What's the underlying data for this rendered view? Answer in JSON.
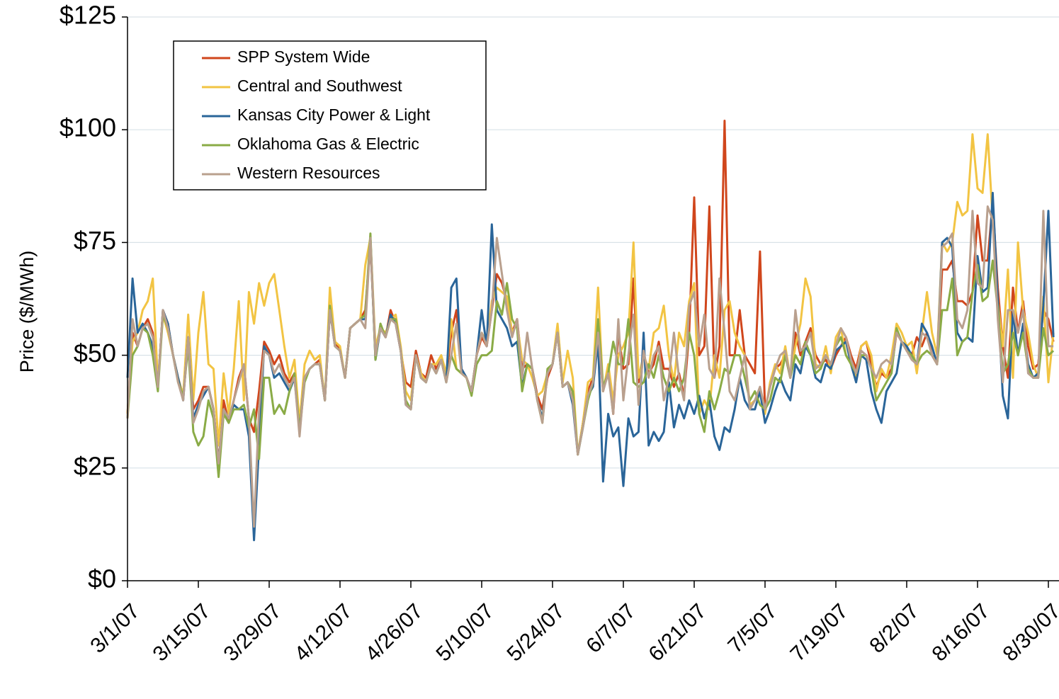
{
  "chart_data": {
    "type": "line",
    "y_label": "Price ($/MWh)",
    "categories": [
      "3/1/07",
      null,
      null,
      null,
      null,
      null,
      null,
      null,
      null,
      null,
      null,
      null,
      null,
      null,
      "3/15/07",
      null,
      null,
      null,
      null,
      null,
      null,
      null,
      null,
      null,
      null,
      null,
      null,
      null,
      "3/29/07",
      null,
      null,
      null,
      null,
      null,
      null,
      null,
      null,
      null,
      null,
      null,
      null,
      null,
      "4/12/07",
      null,
      null,
      null,
      null,
      null,
      null,
      null,
      null,
      null,
      null,
      null,
      null,
      null,
      "4/26/07",
      null,
      null,
      null,
      null,
      null,
      null,
      null,
      null,
      null,
      null,
      null,
      null,
      null,
      "5/10/07",
      null,
      null,
      null,
      null,
      null,
      null,
      null,
      null,
      null,
      null,
      null,
      null,
      null,
      "5/24/07",
      null,
      null,
      null,
      null,
      null,
      null,
      null,
      null,
      null,
      null,
      null,
      null,
      null,
      "6/7/07",
      null,
      null,
      null,
      null,
      null,
      null,
      null,
      null,
      null,
      null,
      null,
      null,
      null,
      "6/21/07",
      null,
      null,
      null,
      null,
      null,
      null,
      null,
      null,
      null,
      null,
      null,
      null,
      null,
      "7/5/07",
      null,
      null,
      null,
      null,
      null,
      null,
      null,
      null,
      null,
      null,
      null,
      null,
      null,
      "7/19/07",
      null,
      null,
      null,
      null,
      null,
      null,
      null,
      null,
      null,
      null,
      null,
      null,
      null,
      "8/2/07",
      null,
      null,
      null,
      null,
      null,
      null,
      null,
      null,
      null,
      null,
      null,
      null,
      null,
      "8/16/07",
      null,
      null,
      null,
      null,
      null,
      null,
      null,
      null,
      null,
      null,
      null,
      null,
      null,
      "8/30/07",
      null
    ],
    "ylim": [
      0,
      125
    ],
    "yticks": [
      {
        "value": 0,
        "label": "$0"
      },
      {
        "value": 25,
        "label": "$25"
      },
      {
        "value": 50,
        "label": "$50"
      },
      {
        "value": 75,
        "label": "$75"
      },
      {
        "value": 100,
        "label": "$100"
      },
      {
        "value": 125,
        "label": "$125"
      }
    ],
    "grid": true,
    "legend": "upper left",
    "series": [
      {
        "name": "SPP System Wide",
        "color": "#d0461c",
        "values": [
          37,
          55,
          52,
          56,
          58,
          55,
          43,
          60,
          57,
          50,
          45,
          41,
          54,
          38,
          40,
          43,
          43,
          38,
          26,
          40,
          35,
          40,
          45,
          48,
          36,
          33,
          42,
          53,
          51,
          48,
          50,
          46,
          44,
          46,
          33,
          45,
          47,
          48,
          49,
          40,
          60,
          53,
          51,
          45,
          56,
          57,
          58,
          60,
          75,
          50,
          56,
          54,
          60,
          57,
          51,
          44,
          43,
          51,
          46,
          45,
          50,
          47,
          49,
          45,
          55,
          60,
          47,
          45,
          42,
          50,
          54,
          52,
          60,
          68,
          66,
          62,
          55,
          58,
          47,
          48,
          47,
          41,
          38,
          45,
          48,
          55,
          43,
          44,
          42,
          28,
          35,
          42,
          45,
          55,
          42,
          47,
          37,
          55,
          47,
          48,
          67,
          44,
          50,
          46,
          48,
          53,
          47,
          47,
          43,
          46,
          41,
          55,
          85,
          50,
          52,
          83,
          45,
          52,
          102,
          50,
          50,
          60,
          50,
          48,
          46,
          73,
          38,
          43,
          47,
          48,
          50,
          45,
          55,
          50,
          53,
          56,
          50,
          48,
          49,
          47,
          50,
          52,
          54,
          50,
          47,
          52,
          53,
          48,
          43,
          46,
          45,
          47,
          55,
          53,
          51,
          50,
          54,
          52,
          55,
          50,
          48,
          69,
          69,
          71,
          62,
          62,
          61,
          64,
          81,
          71,
          71,
          84,
          65,
          52,
          45,
          65,
          55,
          62,
          52,
          47,
          48,
          60,
          58,
          53
        ]
      },
      {
        "name": "Central and Southwest",
        "color": "#f2c443",
        "values": [
          37,
          53,
          55,
          60,
          62,
          67,
          44,
          59,
          55,
          50,
          45,
          41,
          59,
          40,
          55,
          64,
          48,
          47,
          30,
          46,
          37,
          47,
          62,
          40,
          64,
          57,
          66,
          61,
          66,
          68,
          60,
          52,
          45,
          49,
          35,
          48,
          51,
          49,
          50,
          40,
          65,
          53,
          52,
          45,
          56,
          57,
          58,
          70,
          76,
          52,
          56,
          55,
          58,
          59,
          52,
          42,
          40,
          50,
          46,
          44,
          48,
          48,
          50,
          46,
          58,
          47,
          46,
          45,
          42,
          50,
          55,
          53,
          62,
          65,
          64,
          63,
          55,
          57,
          49,
          48,
          45,
          41,
          42,
          46,
          48,
          57,
          44,
          51,
          45,
          28,
          35,
          44,
          45,
          65,
          42,
          48,
          40,
          50,
          52,
          55,
          75,
          45,
          50,
          47,
          55,
          56,
          61,
          50,
          44,
          55,
          52,
          62,
          66,
          37,
          40,
          38,
          50,
          45,
          60,
          62,
          55,
          52,
          50,
          39,
          40,
          42,
          37,
          44,
          48,
          46,
          52,
          45,
          52,
          57,
          67,
          63,
          48,
          47,
          52,
          46,
          54,
          56,
          50,
          48,
          45,
          52,
          53,
          50,
          42,
          47,
          45,
          50,
          57,
          55,
          52,
          53,
          46,
          55,
          64,
          55,
          50,
          75,
          73,
          75,
          84,
          81,
          82,
          99,
          87,
          86,
          99,
          80,
          62,
          52,
          69,
          45,
          75,
          60,
          55,
          48,
          45,
          63,
          44,
          55
        ]
      },
      {
        "name": "Kansas City Power & Light",
        "color": "#2a6599",
        "values": [
          45,
          67,
          55,
          57,
          55,
          52,
          43,
          60,
          57,
          50,
          45,
          40,
          54,
          36,
          39,
          41,
          43,
          38,
          26,
          38,
          36,
          39,
          38,
          38,
          32,
          9,
          30,
          52,
          50,
          45,
          46,
          44,
          42,
          45,
          33,
          45,
          47,
          48,
          48,
          40,
          60,
          52,
          51,
          45,
          56,
          57,
          58,
          58,
          76,
          49,
          56,
          54,
          59,
          57,
          51,
          39,
          38,
          50,
          45,
          44,
          48,
          46,
          49,
          44,
          65,
          67,
          47,
          45,
          42,
          50,
          60,
          52,
          79,
          60,
          58,
          56,
          52,
          53,
          43,
          48,
          47,
          40,
          36,
          46,
          48,
          55,
          43,
          44,
          39,
          28,
          34,
          41,
          43,
          53,
          22,
          37,
          32,
          34,
          21,
          36,
          32,
          33,
          55,
          30,
          33,
          31,
          33,
          44,
          34,
          39,
          36,
          40,
          37,
          41,
          36,
          40,
          32,
          29,
          34,
          33,
          38,
          45,
          40,
          38,
          38,
          42,
          35,
          38,
          42,
          45,
          42,
          40,
          48,
          46,
          52,
          50,
          45,
          44,
          48,
          47,
          51,
          52,
          53,
          48,
          44,
          50,
          49,
          42,
          38,
          35,
          42,
          44,
          46,
          53,
          52,
          50,
          48,
          57,
          55,
          52,
          48,
          75,
          76,
          74,
          55,
          53,
          54,
          53,
          72,
          64,
          65,
          86,
          62,
          41,
          36,
          60,
          50,
          57,
          48,
          45,
          46,
          61,
          82,
          54
        ]
      },
      {
        "name": "Oklahoma Gas & Electric",
        "color": "#8aab46",
        "values": [
          36,
          50,
          52,
          56,
          55,
          50,
          42,
          59,
          56,
          50,
          44,
          41,
          52,
          33,
          30,
          32,
          40,
          36,
          23,
          37,
          35,
          38,
          38,
          39,
          34,
          38,
          27,
          45,
          45,
          37,
          39,
          37,
          42,
          46,
          33,
          44,
          47,
          48,
          48,
          40,
          61,
          52,
          51,
          45,
          56,
          57,
          58,
          59,
          77,
          49,
          57,
          54,
          58,
          58,
          51,
          40,
          38,
          50,
          45,
          44,
          48,
          46,
          49,
          44,
          50,
          47,
          46,
          45,
          41,
          48,
          50,
          50,
          51,
          62,
          59,
          66,
          58,
          56,
          42,
          48,
          47,
          40,
          35,
          47,
          48,
          55,
          43,
          44,
          42,
          28,
          34,
          40,
          44,
          58,
          43,
          46,
          53,
          48,
          48,
          58,
          44,
          43,
          44,
          48,
          45,
          50,
          45,
          42,
          45,
          42,
          45,
          55,
          50,
          37,
          33,
          42,
          38,
          42,
          47,
          46,
          50,
          50,
          45,
          40,
          42,
          39,
          38,
          40,
          45,
          44,
          50,
          45,
          50,
          48,
          53,
          50,
          46,
          47,
          50,
          48,
          52,
          54,
          50,
          48,
          46,
          50,
          50,
          47,
          40,
          42,
          44,
          46,
          56,
          53,
          51,
          50,
          48,
          50,
          51,
          50,
          48,
          60,
          60,
          67,
          50,
          53,
          54,
          64,
          70,
          62,
          63,
          71,
          60,
          46,
          48,
          55,
          50,
          55,
          47,
          45,
          45,
          56,
          50,
          51
        ]
      },
      {
        "name": "Western Resources",
        "color": "#b9a08e",
        "values": [
          36,
          58,
          52,
          56,
          57,
          54,
          43,
          60,
          56,
          50,
          44,
          40,
          54,
          35,
          38,
          42,
          43,
          38,
          26,
          38,
          36,
          40,
          44,
          48,
          36,
          12,
          38,
          51,
          50,
          46,
          48,
          45,
          43,
          45,
          32,
          45,
          47,
          48,
          48,
          40,
          60,
          52,
          51,
          45,
          56,
          57,
          58,
          56,
          76,
          50,
          56,
          54,
          58,
          57,
          51,
          39,
          38,
          50,
          45,
          44,
          48,
          46,
          49,
          44,
          50,
          57,
          46,
          45,
          42,
          50,
          55,
          52,
          60,
          76,
          68,
          60,
          54,
          58,
          45,
          55,
          47,
          40,
          35,
          46,
          48,
          55,
          43,
          44,
          40,
          28,
          34,
          41,
          44,
          55,
          42,
          46,
          37,
          58,
          40,
          50,
          59,
          39,
          51,
          45,
          50,
          52,
          40,
          45,
          55,
          45,
          40,
          61,
          64,
          52,
          59,
          47,
          45,
          67,
          55,
          42,
          40,
          45,
          50,
          38,
          40,
          43,
          38,
          43,
          47,
          50,
          51,
          45,
          60,
          51,
          52,
          55,
          47,
          48,
          50,
          48,
          52,
          56,
          54,
          49,
          46,
          51,
          50,
          47,
          45,
          48,
          49,
          48,
          55,
          53,
          51,
          49,
          48,
          55,
          54,
          50,
          48,
          74,
          75,
          77,
          58,
          56,
          60,
          82,
          66,
          65,
          83,
          80,
          58,
          44,
          60,
          60,
          55,
          60,
          46,
          45,
          45,
          82,
          52,
          52
        ]
      }
    ]
  }
}
